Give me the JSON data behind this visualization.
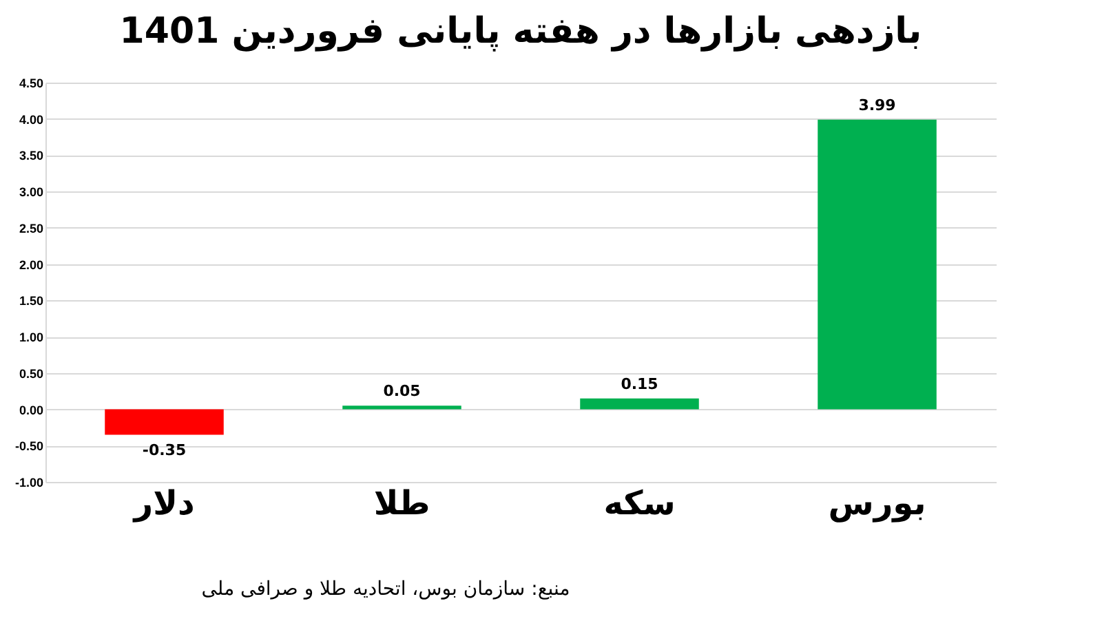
{
  "chart_data": {
    "type": "bar",
    "title": "بازدهی بازارها در هفته پایانی فروردین 1401",
    "categories": [
      "دلار",
      "طلا",
      "سکه",
      "بورس"
    ],
    "values": [
      -0.35,
      0.05,
      0.15,
      3.99
    ],
    "colors": [
      "#ff0000",
      "#00b050",
      "#00b050",
      "#00b050"
    ],
    "data_labels": true,
    "ylim": [
      -1,
      4.5
    ],
    "yticks": [
      {
        "value": -1,
        "label": "-1.00"
      },
      {
        "value": -0.5,
        "label": "-0.50"
      },
      {
        "value": 0,
        "label": "0.00"
      },
      {
        "value": 0.5,
        "label": "0.50"
      },
      {
        "value": 1,
        "label": "1.00"
      },
      {
        "value": 1.5,
        "label": "1.50"
      },
      {
        "value": 2,
        "label": "2.00"
      },
      {
        "value": 2.5,
        "label": "2.50"
      },
      {
        "value": 3,
        "label": "3.00"
      },
      {
        "value": 3.5,
        "label": "3.50"
      },
      {
        "value": 4,
        "label": "4.00"
      },
      {
        "value": 4.5,
        "label": "4.50"
      }
    ],
    "grid": "y",
    "annotations": [
      "منبع: سازمان بوس، اتحادیه طلا و صرافی ملی"
    ]
  }
}
